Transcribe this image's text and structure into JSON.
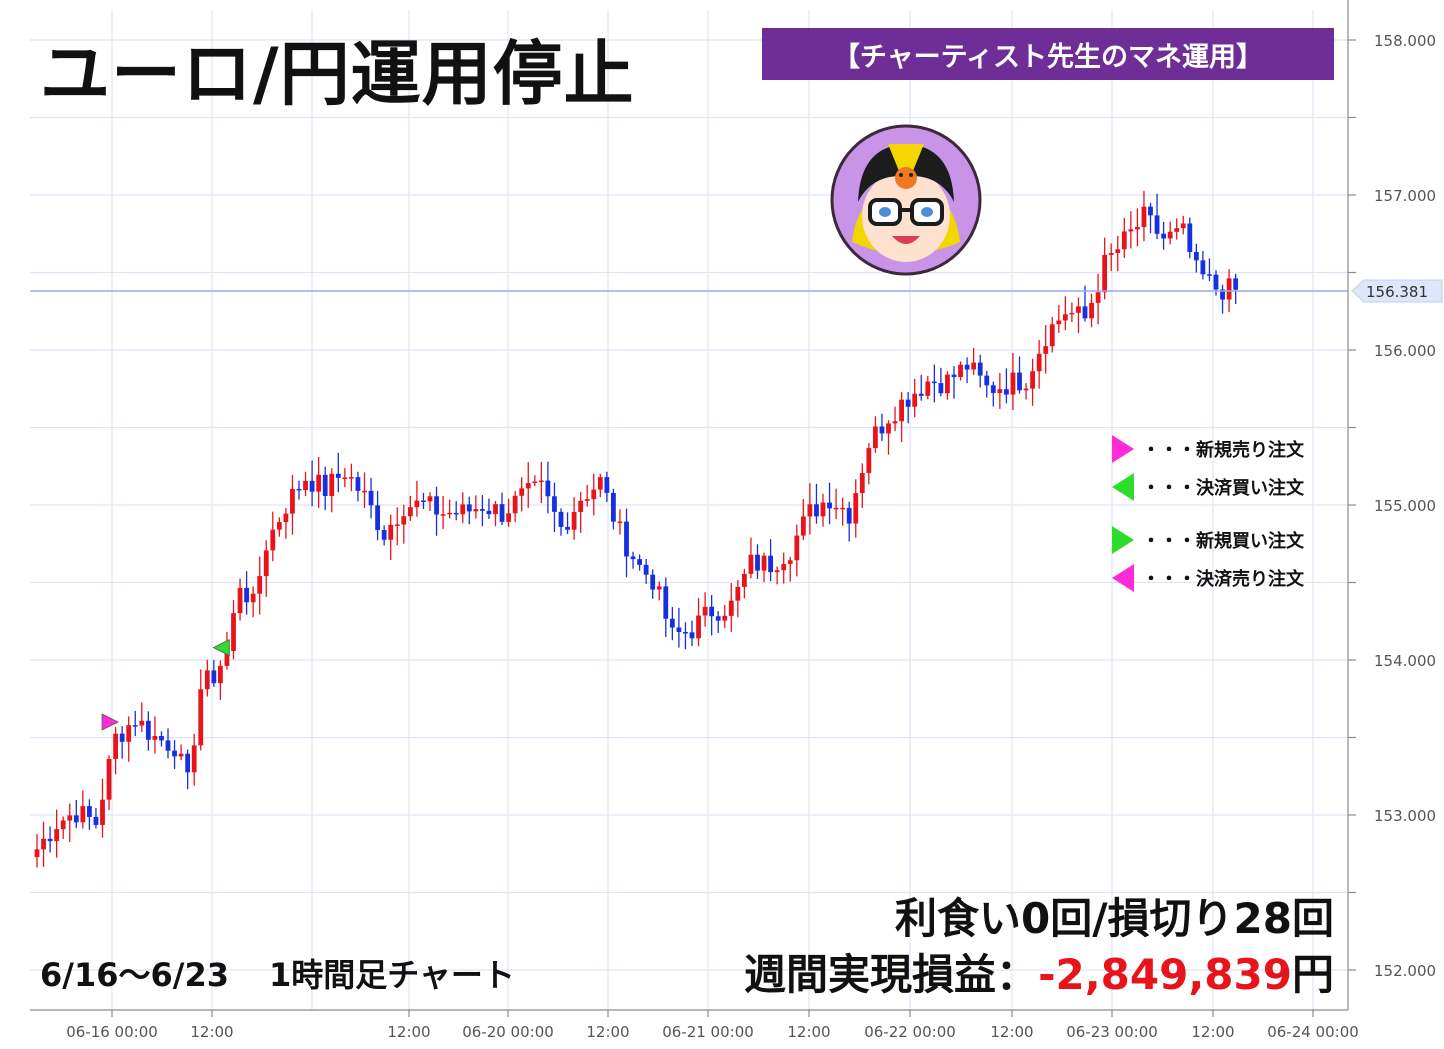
{
  "title": "ユーロ/円運用停止",
  "banner": "【チャーティスト先生のマネ運用】",
  "avatar_icon": "teacher-avatar-icon",
  "legend": [
    {
      "label": "・・・新規売り注文",
      "color": "#ff2bd6",
      "direction": "right"
    },
    {
      "label": "・・・決済買い注文",
      "color": "#2edc2e",
      "direction": "left"
    },
    {
      "label": "・・・新規買い注文",
      "color": "#2edc2e",
      "direction": "right"
    },
    {
      "label": "・・・決済売り注文",
      "color": "#ff2bd6",
      "direction": "left"
    }
  ],
  "stats": {
    "line1": "利食い0回/損切り28回",
    "line2_label": "週間実現損益：",
    "line2_value": "-2,849,839",
    "line2_unit": "円"
  },
  "period": {
    "range": "6/16～6/23",
    "timeframe": "1時間足チャート"
  },
  "chart_data": {
    "type": "candlestick",
    "title": "",
    "xlabel": "",
    "ylabel": "",
    "ylim": [
      151.8,
      158.2
    ],
    "grid": true,
    "y_ticks": [
      "152.000",
      "153.000",
      "154.000",
      "155.000",
      "156.000",
      "157.000",
      "158.000"
    ],
    "y_tick_values": [
      152,
      153,
      154,
      155,
      156,
      157,
      158
    ],
    "x_ticks": [
      "06-16 00:00",
      "12:00",
      "12:00",
      "06-20 00:00",
      "12:00",
      "06-21 00:00",
      "12:00",
      "06-22 00:00",
      "12:00",
      "06-23 00:00",
      "12:00",
      "06-24 00:00"
    ],
    "current_price": "156.381",
    "current_price_value": 156.381,
    "up_color": "#e8141c",
    "down_color": "#1530e0",
    "anchor_closes": [
      [
        0,
        152.78
      ],
      [
        3,
        152.95
      ],
      [
        6,
        153.02
      ],
      [
        9,
        152.95
      ],
      [
        12,
        153.5
      ],
      [
        15,
        153.62
      ],
      [
        18,
        153.5
      ],
      [
        21,
        153.45
      ],
      [
        23,
        153.2
      ],
      [
        25,
        153.82
      ],
      [
        27,
        153.9
      ],
      [
        29,
        154.05
      ],
      [
        31,
        154.5
      ],
      [
        33,
        154.35
      ],
      [
        35,
        154.75
      ],
      [
        38,
        155.0
      ],
      [
        41,
        155.18
      ],
      [
        44,
        155.1
      ],
      [
        47,
        155.22
      ],
      [
        50,
        155.05
      ],
      [
        53,
        154.82
      ],
      [
        56,
        155.0
      ],
      [
        59,
        155.0
      ],
      [
        62,
        154.95
      ],
      [
        65,
        154.95
      ],
      [
        68,
        155.0
      ],
      [
        71,
        154.95
      ],
      [
        74,
        155.05
      ],
      [
        77,
        155.1
      ],
      [
        80,
        154.85
      ],
      [
        83,
        155.05
      ],
      [
        86,
        155.15
      ],
      [
        89,
        154.82
      ],
      [
        92,
        154.6
      ],
      [
        94,
        154.52
      ],
      [
        97,
        154.15
      ],
      [
        100,
        154.2
      ],
      [
        103,
        154.32
      ],
      [
        106,
        154.35
      ],
      [
        109,
        154.62
      ],
      [
        112,
        154.62
      ],
      [
        115,
        154.72
      ],
      [
        118,
        154.95
      ],
      [
        121,
        155.05
      ],
      [
        124,
        154.95
      ],
      [
        127,
        155.4
      ],
      [
        130,
        155.58
      ],
      [
        133,
        155.7
      ],
      [
        136,
        155.8
      ],
      [
        139,
        155.8
      ],
      [
        142,
        155.9
      ],
      [
        145,
        155.75
      ],
      [
        148,
        155.78
      ],
      [
        151,
        155.82
      ],
      [
        154,
        156.1
      ],
      [
        157,
        156.25
      ],
      [
        160,
        156.2
      ],
      [
        163,
        156.55
      ],
      [
        166,
        156.7
      ],
      [
        169,
        156.85
      ],
      [
        172,
        156.72
      ],
      [
        175,
        156.75
      ],
      [
        177,
        156.5
      ],
      [
        180,
        156.4
      ],
      [
        183,
        156.38
      ]
    ],
    "events": [
      {
        "type": "entry_sell",
        "index": 11,
        "price": 153.6
      },
      {
        "type": "exit_buy",
        "index": 28,
        "price": 154.08
      }
    ]
  }
}
